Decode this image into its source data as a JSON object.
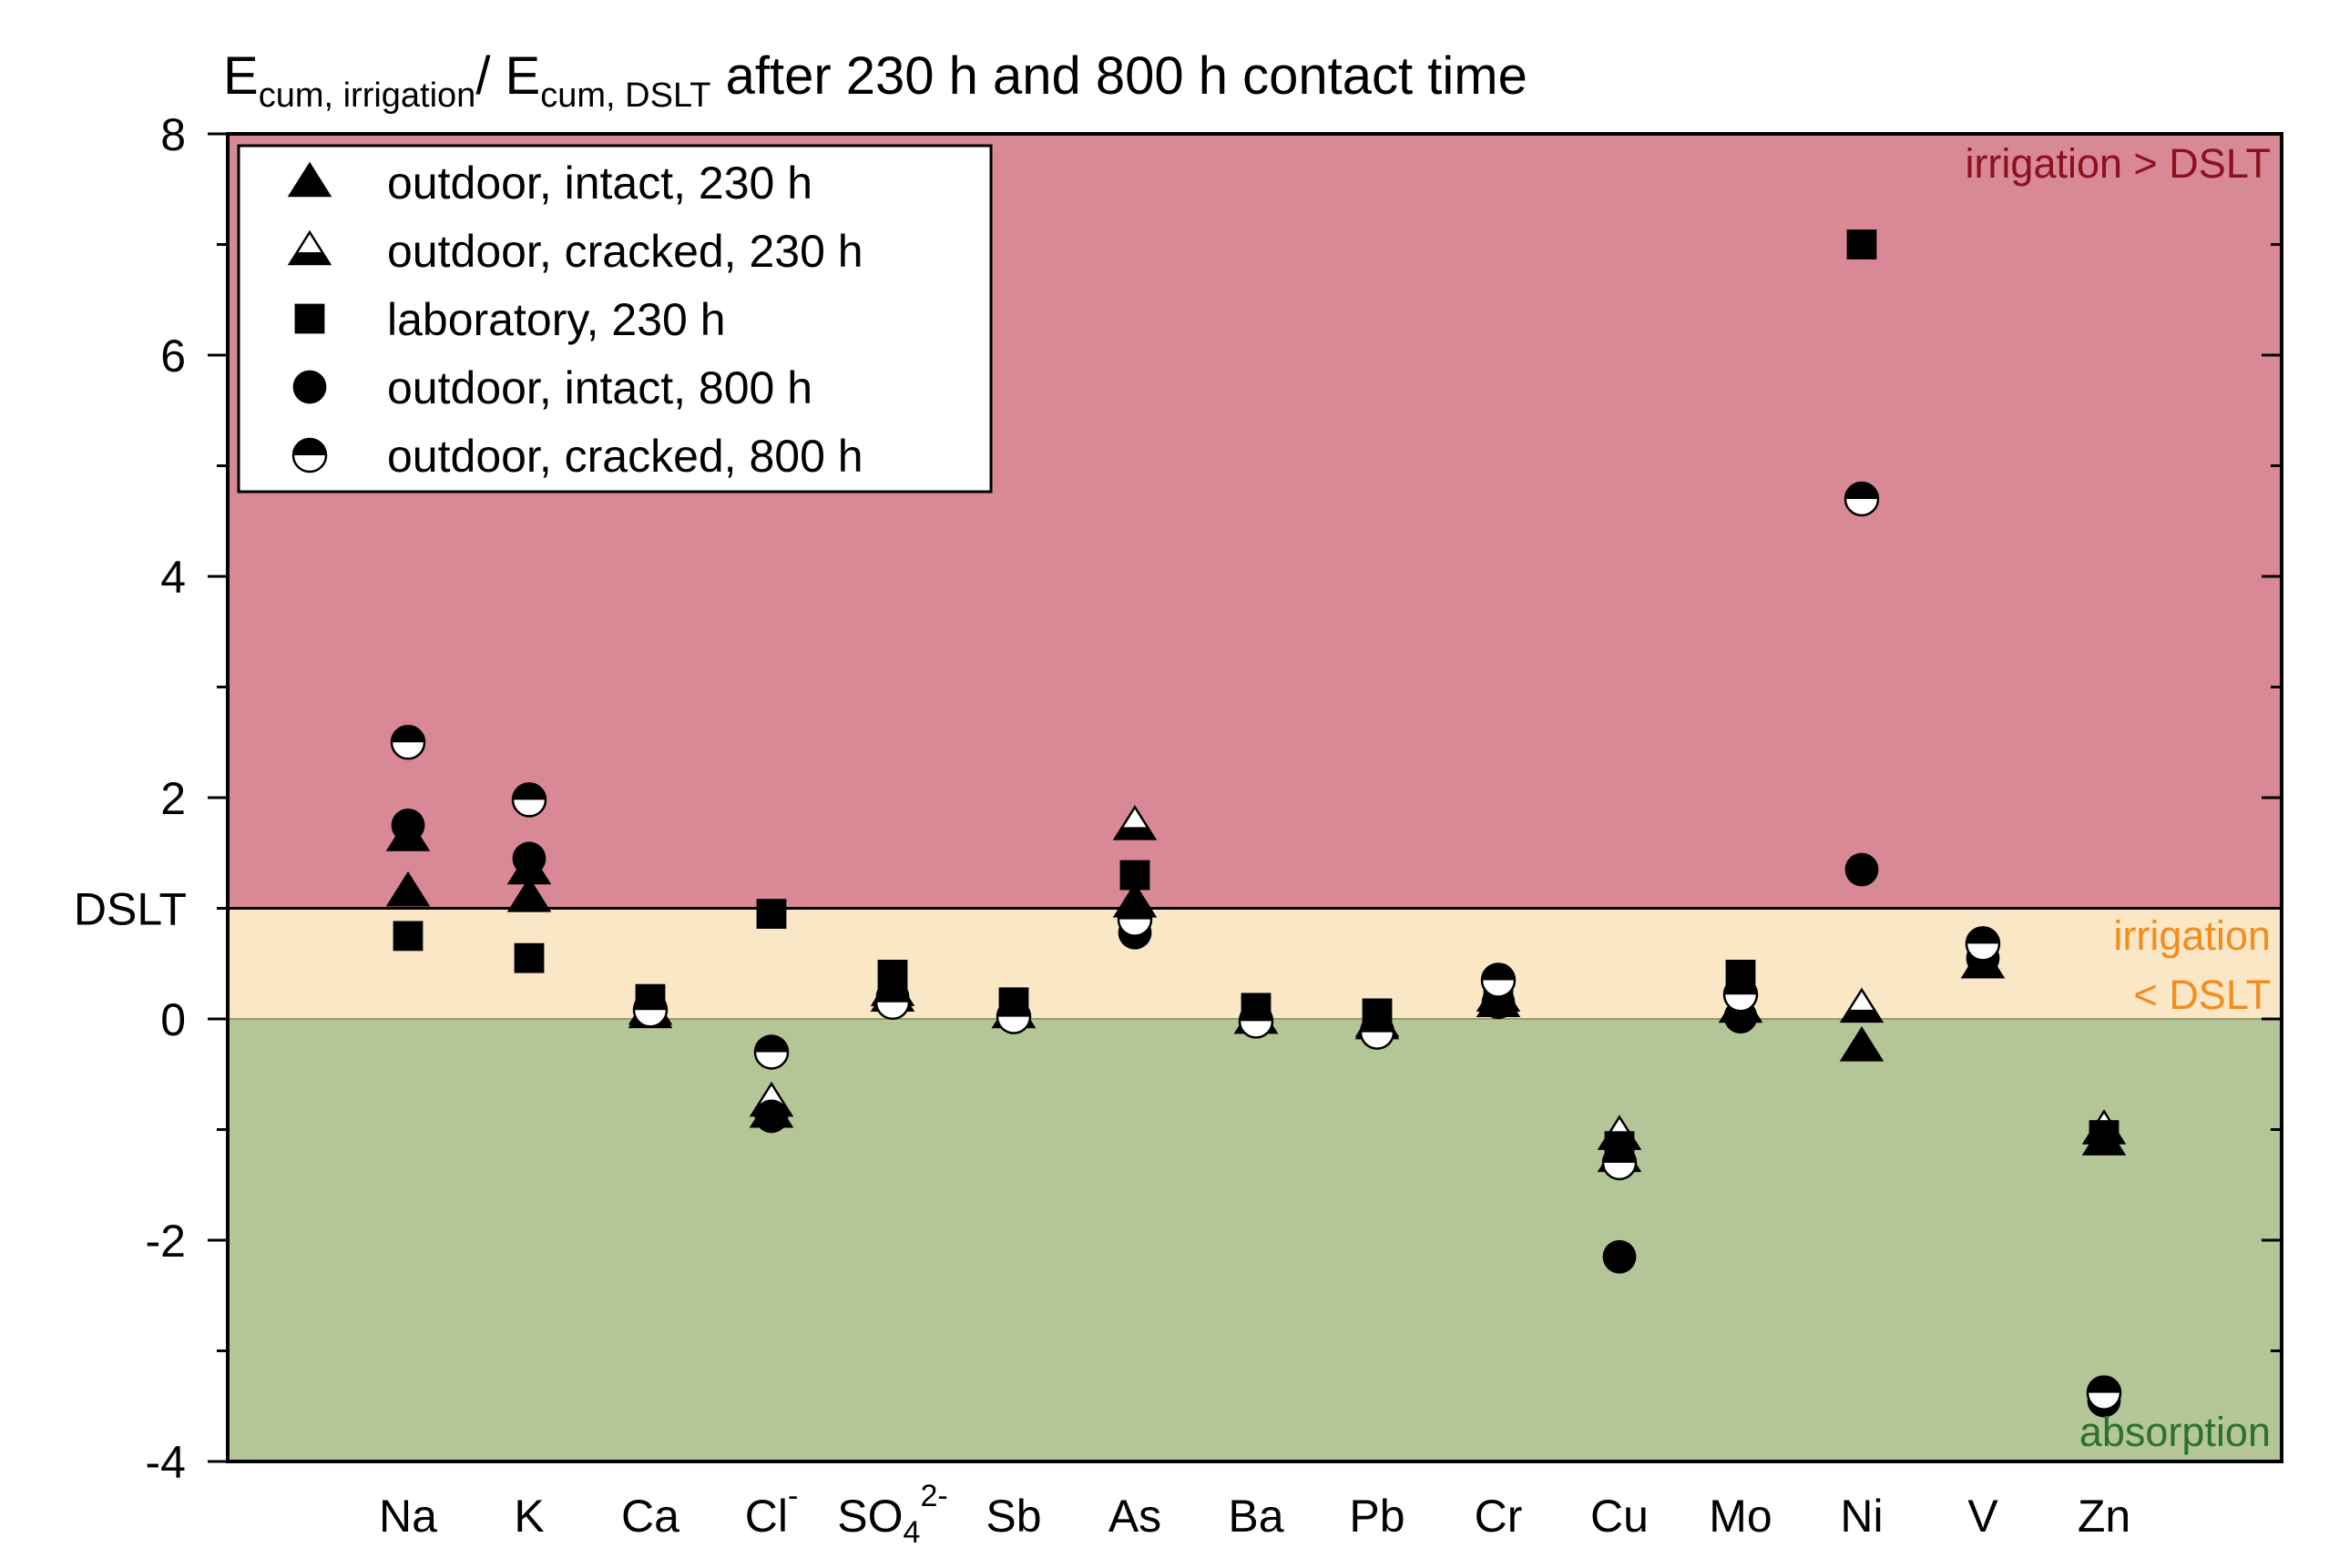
{
  "chart_data": {
    "type": "scatter",
    "title": {
      "E1": "E",
      "sub1": "cum, irrigation",
      "slash": "/ E",
      "sub2": "cum, DSLT",
      "rest": " after 230 h and 800 h contact time"
    },
    "xlabel": "",
    "ylabel": "",
    "ylim": [
      -4,
      8
    ],
    "yticks": [
      -4,
      -2,
      0,
      2,
      4,
      6,
      8
    ],
    "ytick_labels": [
      "-4",
      "-2",
      "0",
      "2",
      "4",
      "6",
      "8"
    ],
    "yminor": [
      -3,
      -1,
      1,
      3,
      5,
      7
    ],
    "dslt_line": {
      "value": 1,
      "label": "DSLT"
    },
    "zones": [
      {
        "name": "irrigation-greater",
        "from": 1,
        "to": 8,
        "color": "#d98896",
        "label_lines": [
          "irrigation > DSLT"
        ],
        "label_color": "#8b1020"
      },
      {
        "name": "irrigation-less",
        "from": 0,
        "to": 1,
        "color": "#fae7c6",
        "label_lines": [
          "irrigation",
          "< DSLT"
        ],
        "label_color": "#f28c1e"
      },
      {
        "name": "absorption",
        "from": -4,
        "to": 0,
        "color": "#b4c597",
        "label_lines": [
          "absorption"
        ],
        "label_color": "#2e7032"
      }
    ],
    "categories": [
      {
        "main": "Na"
      },
      {
        "main": "K"
      },
      {
        "main": "Ca"
      },
      {
        "main": "Cl",
        "sup": "-"
      },
      {
        "main": "SO",
        "sub": "4",
        "sup": "2-"
      },
      {
        "main": "Sb"
      },
      {
        "main": "As"
      },
      {
        "main": "Ba"
      },
      {
        "main": "Pb"
      },
      {
        "main": "Cr"
      },
      {
        "main": "Cu"
      },
      {
        "main": "Mo"
      },
      {
        "main": "Ni"
      },
      {
        "main": "V"
      },
      {
        "main": "Zn"
      }
    ],
    "series": [
      {
        "name": "outdoor, intact, 230 h",
        "marker": "triangle-filled",
        "values": [
          1.15,
          1.1,
          0.05,
          -0.85,
          0.2,
          0.05,
          1.05,
          0.0,
          -0.05,
          0.15,
          -1.25,
          0.1,
          -0.25,
          0.5,
          -1.1
        ]
      },
      {
        "name": "outdoor, cracked, 230 h",
        "marker": "triangle-half",
        "values": [
          1.65,
          1.35,
          0.08,
          -0.75,
          0.25,
          0.05,
          1.75,
          0.0,
          -0.03,
          0.2,
          -1.05,
          0.1,
          0.1,
          0.5,
          -1.0
        ]
      },
      {
        "name": "laboratory, 230 h",
        "marker": "square-filled",
        "values": [
          0.75,
          0.55,
          0.18,
          0.95,
          0.4,
          0.15,
          1.3,
          0.1,
          0.05,
          0.2,
          -1.15,
          0.4,
          7.0,
          0.6,
          -1.05
        ]
      },
      {
        "name": "outdoor, intact, 800 h",
        "marker": "circle-filled",
        "values": [
          1.75,
          1.45,
          0.1,
          -0.88,
          0.2,
          0.02,
          0.78,
          0.0,
          -0.1,
          0.15,
          -2.15,
          0.02,
          1.35,
          0.55,
          -3.45
        ]
      },
      {
        "name": "outdoor, cracked, 800 h",
        "marker": "circle-half",
        "values": [
          2.5,
          1.98,
          0.08,
          -0.3,
          0.15,
          0.02,
          0.9,
          -0.02,
          -0.12,
          0.35,
          -1.3,
          0.22,
          4.7,
          0.68,
          -3.38
        ]
      }
    ],
    "legend_position": "top-left"
  }
}
